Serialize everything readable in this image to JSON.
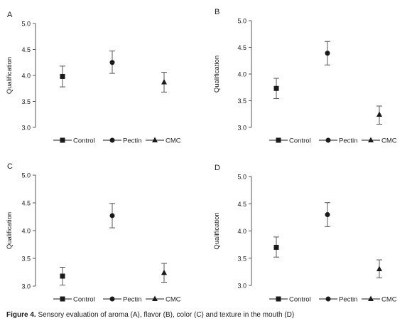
{
  "caption": {
    "label": "Figure 4.",
    "text": "Sensory evaluation of aroma (A), flavor (B), color (C) and texture in the mouth (D)"
  },
  "colors": {
    "ink": "#1a1a1a",
    "axis": "#555555"
  },
  "chart_data": [
    {
      "type": "scatter",
      "panel": "A",
      "ylabel": "Qualification",
      "ylim": [
        3.0,
        5.0
      ],
      "yticks": [
        "3.0",
        "3.5",
        "4.0",
        "4.5",
        "5.0"
      ],
      "legend_position": "bottom",
      "series": [
        {
          "name": "Control",
          "marker": "square",
          "value": 3.98,
          "error_low": 3.78,
          "error_high": 4.18
        },
        {
          "name": "Pectin",
          "marker": "circle",
          "value": 4.25,
          "error_low": 4.04,
          "error_high": 4.47
        },
        {
          "name": "CMC",
          "marker": "triangle",
          "value": 3.87,
          "error_low": 3.68,
          "error_high": 4.06
        }
      ]
    },
    {
      "type": "scatter",
      "panel": "B",
      "ylabel": "Qualification",
      "ylim": [
        3.0,
        5.0
      ],
      "yticks": [
        "3.0",
        "3.5",
        "4.0",
        "4.5",
        "5.0"
      ],
      "legend_position": "bottom",
      "series": [
        {
          "name": "Control",
          "marker": "square",
          "value": 3.73,
          "error_low": 3.54,
          "error_high": 3.92
        },
        {
          "name": "Pectin",
          "marker": "circle",
          "value": 4.39,
          "error_low": 4.17,
          "error_high": 4.61
        },
        {
          "name": "CMC",
          "marker": "triangle",
          "value": 3.24,
          "error_low": 3.06,
          "error_high": 3.4
        }
      ]
    },
    {
      "type": "scatter",
      "panel": "C",
      "ylabel": "Qualification",
      "ylim": [
        3.0,
        5.0
      ],
      "yticks": [
        "3.0",
        "3.5",
        "4.0",
        "4.5",
        "5.0"
      ],
      "legend_position": "bottom",
      "series": [
        {
          "name": "Control",
          "marker": "square",
          "value": 3.18,
          "error_low": 3.02,
          "error_high": 3.34
        },
        {
          "name": "Pectin",
          "marker": "circle",
          "value": 4.27,
          "error_low": 4.05,
          "error_high": 4.49
        },
        {
          "name": "CMC",
          "marker": "triangle",
          "value": 3.24,
          "error_low": 3.07,
          "error_high": 3.41
        }
      ]
    },
    {
      "type": "scatter",
      "panel": "D",
      "ylabel": "Qualification",
      "ylim": [
        3.0,
        5.0
      ],
      "yticks": [
        "3.0",
        "3.5",
        "4.0",
        "4.5",
        "5.0"
      ],
      "legend_position": "bottom",
      "series": [
        {
          "name": "Control",
          "marker": "square",
          "value": 3.7,
          "error_low": 3.52,
          "error_high": 3.89
        },
        {
          "name": "Pectin",
          "marker": "circle",
          "value": 4.3,
          "error_low": 4.08,
          "error_high": 4.52
        },
        {
          "name": "CMC",
          "marker": "triangle",
          "value": 3.3,
          "error_low": 3.14,
          "error_high": 3.47
        }
      ]
    }
  ]
}
